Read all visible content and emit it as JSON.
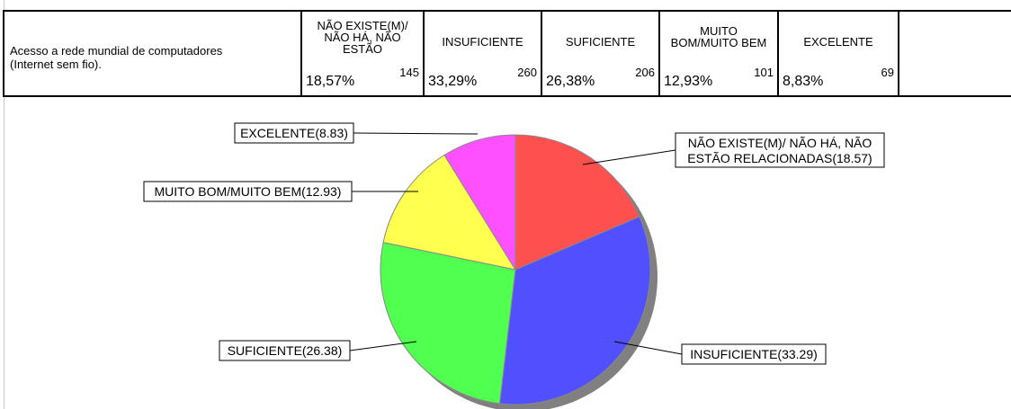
{
  "question": "Acesso a rede mundial de computadores\n(Internet sem fio).",
  "table": {
    "columns": [
      {
        "header": "NÃO EXISTE(M)/\nNÃO HÁ, NÃO\nESTÃO",
        "percent": "18,57%",
        "count": "145"
      },
      {
        "header": "INSUFICIENTE",
        "percent": "33,29%",
        "count": "260"
      },
      {
        "header": "SUFICIENTE",
        "percent": "26,38%",
        "count": "206"
      },
      {
        "header": "MUITO\nBOM/MUITO BEM",
        "percent": "12,93%",
        "count": "101"
      },
      {
        "header": "EXCELENTE",
        "percent": "8,83%",
        "count": "69"
      }
    ]
  },
  "colors": {
    "nao_existe": "#ff5050",
    "insuficiente": "#5050ff",
    "suficiente": "#50ff50",
    "muito_bom": "#ffff50",
    "excelente": "#ff50ff",
    "shadow": "#808080"
  },
  "chart_data": {
    "type": "pie",
    "start": "12 o'clock",
    "direction": "clockwise",
    "slices": [
      {
        "label": "NÃO EXISTE(M)/ NÃO HÁ, NÃO ESTÃO RELACIONADAS(18.57)",
        "value": 18.57,
        "color": "#ff5050"
      },
      {
        "label": "INSUFICIENTE(33.29)",
        "value": 33.29,
        "color": "#5050ff"
      },
      {
        "label": "SUFICIENTE(26.38)",
        "value": 26.38,
        "color": "#50ff50"
      },
      {
        "label": "MUITO BOM/MUITO BEM(12.93)",
        "value": 12.93,
        "color": "#ffff50"
      },
      {
        "label": "EXCELENTE(8.83)",
        "value": 8.83,
        "color": "#ff50ff"
      }
    ]
  }
}
